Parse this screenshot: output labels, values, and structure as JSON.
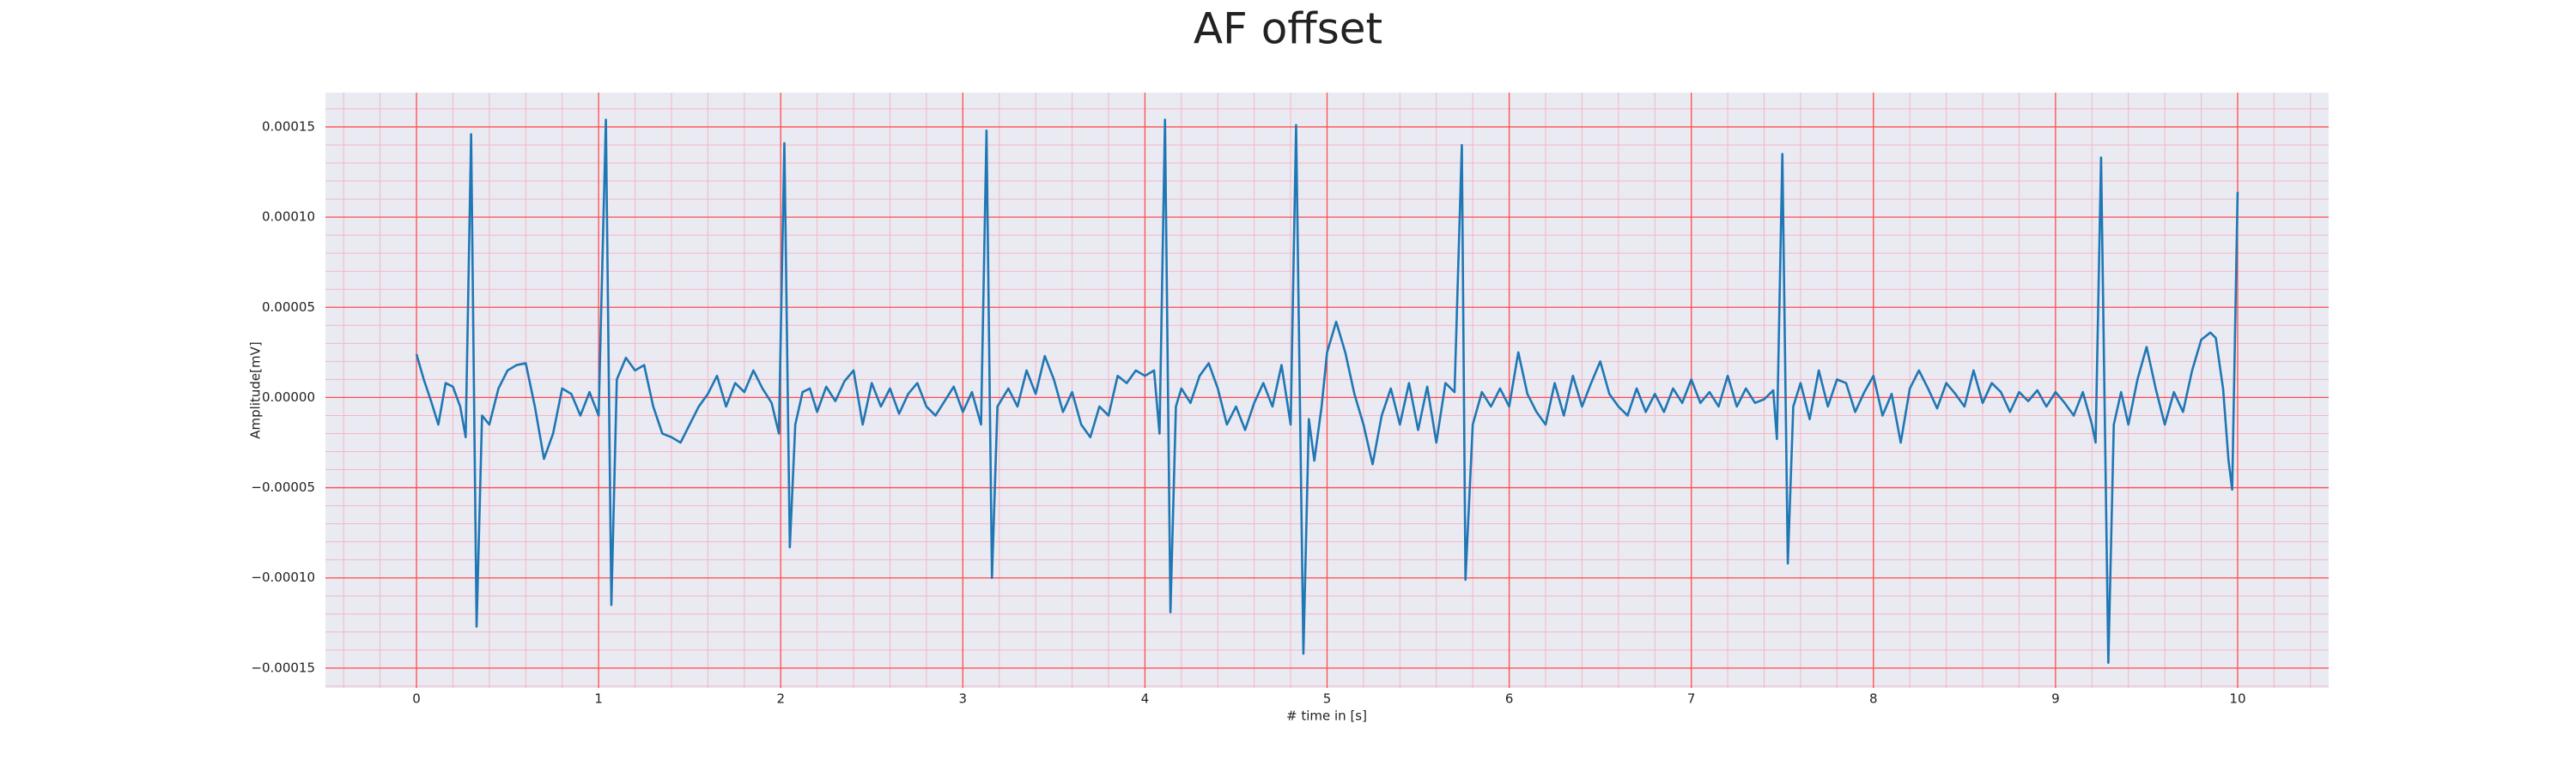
{
  "chart_data": {
    "type": "line",
    "title": "AF offset",
    "xlabel": "# time in [s]",
    "ylabel": "Amplitude[mV]",
    "xlim": [
      -0.5,
      10.5
    ],
    "ylim": [
      -0.000161,
      0.000169
    ],
    "xticks": [
      0,
      1,
      2,
      3,
      4,
      5,
      6,
      7,
      8,
      9,
      10
    ],
    "yticks": [
      {
        "value": -0.00015,
        "label": "−0.00015"
      },
      {
        "value": -0.0001,
        "label": "−0.00010"
      },
      {
        "value": -5e-05,
        "label": "−0.00005"
      },
      {
        "value": 0,
        "label": "0.00000"
      },
      {
        "value": 5e-05,
        "label": "0.00005"
      },
      {
        "value": 0.0001,
        "label": "0.00010"
      },
      {
        "value": 0.00015,
        "label": "0.00015"
      }
    ],
    "grid": true,
    "grid_color": "#ff4d4d",
    "minor_grid": true,
    "background": "#eaeaf2",
    "series": [
      {
        "color": "#1f77b4",
        "x": [
          0,
          0.04,
          0.08,
          0.12,
          0.16,
          0.2,
          0.24,
          0.27,
          0.3,
          0.33,
          0.36,
          0.4,
          0.45,
          0.5,
          0.55,
          0.6,
          0.65,
          0.7,
          0.75,
          0.8,
          0.85,
          0.9,
          0.95,
          1,
          1.04,
          1.07,
          1.1,
          1.15,
          1.2,
          1.25,
          1.3,
          1.35,
          1.4,
          1.45,
          1.5,
          1.55,
          1.6,
          1.65,
          1.7,
          1.75,
          1.8,
          1.85,
          1.9,
          1.95,
          1.99,
          2.02,
          2.05,
          2.08,
          2.12,
          2.16,
          2.2,
          2.25,
          2.3,
          2.35,
          2.4,
          2.45,
          2.5,
          2.55,
          2.6,
          2.65,
          2.7,
          2.75,
          2.8,
          2.85,
          2.9,
          2.95,
          3,
          3.05,
          3.1,
          3.13,
          3.16,
          3.19,
          3.25,
          3.3,
          3.35,
          3.4,
          3.45,
          3.5,
          3.55,
          3.6,
          3.65,
          3.7,
          3.75,
          3.8,
          3.85,
          3.9,
          3.95,
          4,
          4.05,
          4.08,
          4.11,
          4.14,
          4.17,
          4.2,
          4.25,
          4.3,
          4.35,
          4.4,
          4.45,
          4.5,
          4.55,
          4.6,
          4.65,
          4.7,
          4.75,
          4.8,
          4.83,
          4.87,
          4.9,
          4.93,
          4.97,
          5,
          5.05,
          5.1,
          5.15,
          5.2,
          5.25,
          5.3,
          5.35,
          5.4,
          5.45,
          5.5,
          5.55,
          5.6,
          5.65,
          5.7,
          5.74,
          5.76,
          5.8,
          5.85,
          5.9,
          5.95,
          6,
          6.05,
          6.1,
          6.15,
          6.2,
          6.25,
          6.3,
          6.35,
          6.4,
          6.45,
          6.5,
          6.55,
          6.6,
          6.65,
          6.7,
          6.75,
          6.8,
          6.85,
          6.9,
          6.95,
          7,
          7.05,
          7.1,
          7.15,
          7.2,
          7.25,
          7.3,
          7.35,
          7.4,
          7.45,
          7.47,
          7.5,
          7.53,
          7.56,
          7.6,
          7.65,
          7.7,
          7.75,
          7.8,
          7.85,
          7.9,
          7.95,
          8,
          8.05,
          8.1,
          8.15,
          8.2,
          8.25,
          8.3,
          8.35,
          8.4,
          8.45,
          8.5,
          8.55,
          8.6,
          8.65,
          8.7,
          8.75,
          8.8,
          8.85,
          8.9,
          8.95,
          9,
          9.05,
          9.1,
          9.15,
          9.2,
          9.22,
          9.25,
          9.29,
          9.32,
          9.36,
          9.4,
          9.45,
          9.5,
          9.55,
          9.6,
          9.65,
          9.7,
          9.75,
          9.8,
          9.85,
          9.88,
          9.92,
          9.95,
          9.97,
          10
        ],
        "values": [
          2.4e-05,
          1e-05,
          -2e-06,
          -1.5e-05,
          8e-06,
          6e-06,
          -5e-06,
          -2.2e-05,
          0.000146,
          -0.000127,
          -1e-05,
          -1.5e-05,
          5e-06,
          1.5e-05,
          1.8e-05,
          1.9e-05,
          -5e-06,
          -3.4e-05,
          -2e-05,
          5e-06,
          2e-06,
          -1e-05,
          3e-06,
          -1e-05,
          0.000154,
          -0.000115,
          1e-05,
          2.2e-05,
          1.5e-05,
          1.8e-05,
          -5e-06,
          -2e-05,
          -2.2e-05,
          -2.5e-05,
          -1.5e-05,
          -5e-06,
          2e-06,
          1.2e-05,
          -5e-06,
          8e-06,
          3e-06,
          1.5e-05,
          5e-06,
          -3e-06,
          -2e-05,
          0.000141,
          -8.3e-05,
          -1.5e-05,
          3e-06,
          5e-06,
          -8e-06,
          6e-06,
          -2e-06,
          9e-06,
          1.5e-05,
          -1.5e-05,
          8e-06,
          -5e-06,
          5e-06,
          -9e-06,
          2e-06,
          8e-06,
          -5e-06,
          -1e-05,
          -2e-06,
          6e-06,
          -8e-06,
          3e-06,
          -1.5e-05,
          0.000148,
          -0.0001,
          -5e-06,
          5e-06,
          -5e-06,
          1.5e-05,
          2e-06,
          2.3e-05,
          1e-05,
          -8e-06,
          3e-06,
          -1.5e-05,
          -2.2e-05,
          -5e-06,
          -1e-05,
          1.2e-05,
          8e-06,
          1.5e-05,
          1.2e-05,
          1.5e-05,
          -2e-05,
          0.000154,
          -0.000119,
          -5e-06,
          5e-06,
          -3e-06,
          1.2e-05,
          1.9e-05,
          5e-06,
          -1.5e-05,
          -5e-06,
          -1.8e-05,
          -3e-06,
          8e-06,
          -5e-06,
          1.8e-05,
          -1.5e-05,
          0.000151,
          -0.000142,
          -1.2e-05,
          -3.5e-05,
          -5e-06,
          2.5e-05,
          4.2e-05,
          2.5e-05,
          2e-06,
          -1.5e-05,
          -3.7e-05,
          -1e-05,
          5e-06,
          -1.5e-05,
          8e-06,
          -1.8e-05,
          6e-06,
          -2.5e-05,
          8e-06,
          3e-06,
          0.00014,
          -0.000101,
          -1.5e-05,
          3e-06,
          -5e-06,
          5e-06,
          -5e-06,
          2.5e-05,
          2e-06,
          -8e-06,
          -1.5e-05,
          8e-06,
          -1e-05,
          1.2e-05,
          -5e-06,
          8e-06,
          2e-05,
          2e-06,
          -5e-06,
          -1e-05,
          5e-06,
          -8e-06,
          2e-06,
          -8e-06,
          5e-06,
          -3e-06,
          1e-05,
          -3e-06,
          3e-06,
          -5e-06,
          1.2e-05,
          -5e-06,
          5e-06,
          -3e-06,
          -1e-06,
          4e-06,
          -2.3e-05,
          0.000135,
          -9.2e-05,
          -5e-06,
          8e-06,
          -1.2e-05,
          1.5e-05,
          -5e-06,
          1e-05,
          8e-06,
          -8e-06,
          3e-06,
          1.2e-05,
          -1e-05,
          2e-06,
          -2.5e-05,
          5e-06,
          1.5e-05,
          5e-06,
          -6e-06,
          8e-06,
          2e-06,
          -5e-06,
          1.5e-05,
          -3e-06,
          8e-06,
          3e-06,
          -8e-06,
          3e-06,
          -2e-06,
          4e-06,
          -5e-06,
          3e-06,
          -3e-06,
          -1e-05,
          3e-06,
          -1.5e-05,
          -2.5e-05,
          0.000133,
          -0.000147,
          -1.5e-05,
          3e-06,
          -1.5e-05,
          1e-05,
          2.8e-05,
          5e-06,
          -1.5e-05,
          3e-06,
          -8e-06,
          1.5e-05,
          3.2e-05,
          3.6e-05,
          3.3e-05,
          5e-06,
          -3.5e-05,
          -5.1e-05,
          0.000114
        ]
      }
    ]
  }
}
